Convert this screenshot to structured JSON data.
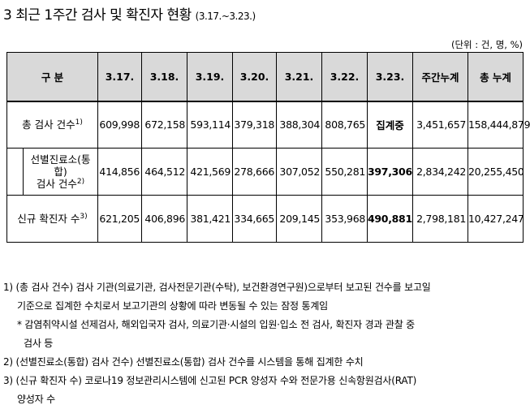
{
  "title": {
    "main": "3 최근 1주간 검사 및 확진자 현황",
    "period": "(3.17.~3.23.)"
  },
  "unit": "(단위 : 건, 명, %)",
  "table": {
    "headers": [
      "구 분",
      "3.17.",
      "3.18.",
      "3.19.",
      "3.20.",
      "3.21.",
      "3.22.",
      "3.23.",
      "주간누계",
      "총 누계"
    ],
    "rows": [
      {
        "label": "총 검사 건수",
        "sup": "1)",
        "values": [
          "609,998",
          "672,158",
          "593,114",
          "379,318",
          "388,304",
          "808,765",
          "집계중",
          "3,451,657",
          "158,444,879"
        ]
      },
      {
        "label_lines": [
          "선별진료소(통",
          "합)",
          "검사 건수"
        ],
        "sup": "2)",
        "values": [
          "414,856",
          "464,512",
          "421,569",
          "278,666",
          "307,052",
          "550,281",
          "397,306",
          "2,834,242",
          "20,255,450"
        ]
      },
      {
        "label": "신규 확진자 수",
        "sup": "3)",
        "values": [
          "621,205",
          "406,896",
          "381,421",
          "334,665",
          "209,145",
          "353,968",
          "490,881",
          "2,798,181",
          "10,427,247"
        ]
      }
    ]
  },
  "notes": {
    "n1_line1": "1) (총 검사 건수) 검사 기관(의료기관, 검사전문기관(수탁), 보건환경연구원)으로부터 보고된 건수를 보고일",
    "n1_line2": "기준으로 집계한 수치로서 보고기관의 상황에 따라 변동될 수 있는 잠정 통계임",
    "n1_sub_line1": "* 감염취약시설 선제검사, 해외입국자 검사, 의료기관·시설의 입원·입소 전 검사, 확진자 경과 관찰 중",
    "n1_sub_line2": "검사 등",
    "n2": "2) (선별진료소(통합) 검사 건수) 선별진료소(통합) 검사 건수를 시스템을 통해 집계한 수치",
    "n3_line1": "3) (신규 확진자 수) 코로나19 정보관리시스템에 신고된 PCR 양성자 수와 전문가용 신속항원검사(RAT)",
    "n3_line2": "양성자 수"
  }
}
